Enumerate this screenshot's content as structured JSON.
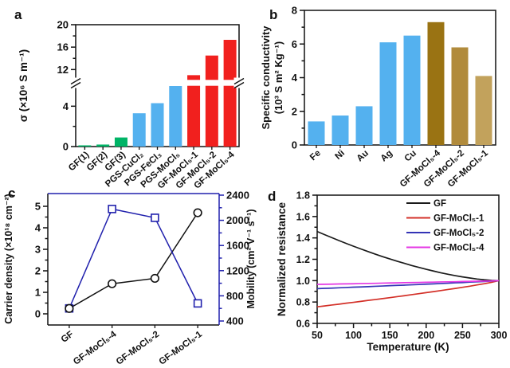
{
  "figure": {
    "background": "#ffffff"
  },
  "chart_data": [
    {
      "id": "a",
      "panel_label": "a",
      "type": "bar",
      "ylabel": "σ (×10⁶ S m⁻¹)",
      "categories": [
        "GF(1)",
        "GF(2)",
        "GF(3)",
        "PGS-CuCl₂",
        "PGS-FeCl₃",
        "PGS-MoCl₅",
        "GF-MoCl₅-1",
        "GF-MoCl₅-2",
        "GF-MoCl₅-4"
      ],
      "values": [
        0.12,
        0.2,
        0.9,
        3.3,
        4.3,
        6.0,
        11.0,
        14.5,
        17.3
      ],
      "bar_colors": [
        "#00b466",
        "#00b466",
        "#00b466",
        "#54b1ef",
        "#54b1ef",
        "#54b1ef",
        "#f1201e",
        "#f1201e",
        "#f1201e"
      ],
      "axis_break": {
        "below": 6,
        "above": 10.2
      },
      "ylim_below": [
        0,
        6
      ],
      "ylim_above": [
        10.2,
        20
      ],
      "yticks_below": [
        0,
        4
      ],
      "yminor_below": [
        2
      ],
      "yticks_above": [
        12,
        16,
        20
      ],
      "yminor_above": [
        14,
        18
      ]
    },
    {
      "id": "b",
      "panel_label": "b",
      "type": "bar",
      "ylabel_lines": [
        "Specific conductivity",
        "(10³ S m² Kg⁻¹)"
      ],
      "categories": [
        "Fe",
        "Ni",
        "Au",
        "Ag",
        "Cu",
        "GF-MoCl₅-4",
        "GF-MoCl₅-2",
        "GF-MoCl₅-1"
      ],
      "values": [
        1.4,
        1.75,
        2.3,
        6.1,
        6.5,
        7.3,
        5.8,
        4.1
      ],
      "bar_colors": [
        "#54b1ef",
        "#54b1ef",
        "#54b1ef",
        "#54b1ef",
        "#54b1ef",
        "#9a7313",
        "#b18b3c",
        "#c2a25c"
      ],
      "ylim": [
        0,
        8
      ],
      "yticks": [
        0,
        2,
        4,
        6,
        8
      ],
      "yminor": [
        1,
        3,
        5,
        7
      ]
    },
    {
      "id": "c",
      "panel_label": "c",
      "type": "line",
      "categories": [
        "GF",
        "GF-MoCl₅-4",
        "GF-MoCl₅-2",
        "GF-MoCl₅-1"
      ],
      "left_axis": {
        "label": "Carrier density (×10¹⁸ cm⁻²)",
        "color": "#111111",
        "ticks": [
          0,
          1,
          2,
          3,
          4,
          5
        ],
        "minor_ticks": [
          0.5,
          1.5,
          2.5,
          3.5,
          4.5
        ],
        "marker": "circle",
        "values": [
          0.25,
          1.4,
          1.65,
          4.7
        ]
      },
      "right_axis": {
        "label": "Mobility (cm² V⁻¹ s⁻¹)",
        "color": "#2121ad",
        "ticks": [
          400,
          800,
          1200,
          1600,
          2000,
          2400
        ],
        "minor_ticks": [
          600,
          1000,
          1400,
          1800,
          2200
        ],
        "marker": "square",
        "values": [
          600,
          2180,
          2040,
          680
        ]
      }
    },
    {
      "id": "d",
      "panel_label": "d",
      "type": "line",
      "xlabel": "Temperature (K)",
      "ylabel": "Normalized resistance",
      "xlim": [
        50,
        300
      ],
      "xticks": [
        50,
        100,
        150,
        200,
        250,
        300
      ],
      "xminor": [
        75,
        125,
        175,
        225,
        275
      ],
      "ylim": [
        0.6,
        1.8
      ],
      "yticks": [
        0.6,
        0.8,
        1.0,
        1.2,
        1.4,
        1.6,
        1.8
      ],
      "x": [
        50,
        60,
        70,
        80,
        90,
        100,
        110,
        120,
        130,
        140,
        150,
        160,
        170,
        180,
        190,
        200,
        210,
        220,
        230,
        240,
        250,
        260,
        270,
        280,
        290,
        300
      ],
      "series": [
        {
          "name": "GF",
          "color": "#1a1a1a",
          "values": [
            1.46,
            1.431,
            1.403,
            1.375,
            1.348,
            1.322,
            1.297,
            1.272,
            1.248,
            1.225,
            1.203,
            1.182,
            1.162,
            1.142,
            1.124,
            1.106,
            1.09,
            1.074,
            1.06,
            1.047,
            1.035,
            1.025,
            1.015,
            1.008,
            1.003,
            1.0
          ]
        },
        {
          "name": "GF-MoCl₅-1",
          "color": "#d33028",
          "values": [
            0.755,
            0.763,
            0.772,
            0.78,
            0.789,
            0.797,
            0.806,
            0.815,
            0.823,
            0.832,
            0.841,
            0.85,
            0.859,
            0.869,
            0.878,
            0.888,
            0.897,
            0.907,
            0.917,
            0.927,
            0.938,
            0.948,
            0.96,
            0.971,
            0.984,
            1.0
          ]
        },
        {
          "name": "GF-MoCl₅-2",
          "color": "#3434b6",
          "values": [
            0.925,
            0.928,
            0.93,
            0.933,
            0.936,
            0.939,
            0.941,
            0.944,
            0.947,
            0.95,
            0.953,
            0.956,
            0.958,
            0.961,
            0.964,
            0.967,
            0.97,
            0.973,
            0.976,
            0.98,
            0.982,
            0.986,
            0.989,
            0.992,
            0.996,
            1.0
          ]
        },
        {
          "name": "GF-MoCl₅-4",
          "color": "#e437e4",
          "values": [
            0.965,
            0.966,
            0.967,
            0.969,
            0.97,
            0.971,
            0.973,
            0.974,
            0.975,
            0.977,
            0.978,
            0.979,
            0.981,
            0.982,
            0.983,
            0.985,
            0.986,
            0.988,
            0.989,
            0.99,
            0.992,
            0.993,
            0.995,
            0.996,
            0.998,
            1.0
          ]
        }
      ],
      "legend": [
        "GF",
        "GF-MoCl₅-1",
        "GF-MoCl₅-2",
        "GF-MoCl₅-4"
      ]
    }
  ]
}
